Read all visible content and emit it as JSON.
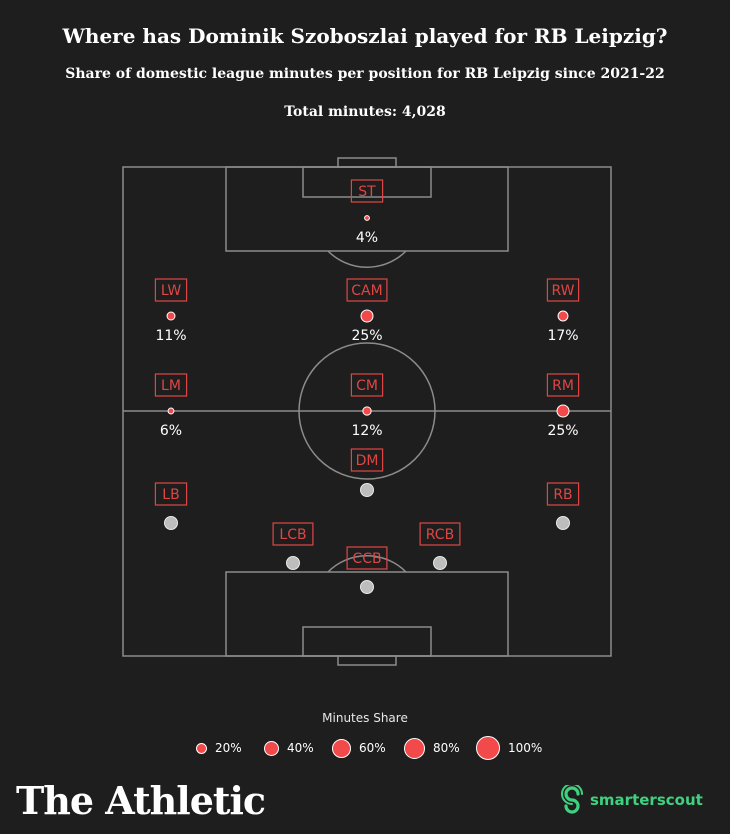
{
  "header": {
    "title": "Where has Dominik Szoboszlai played for RB Leipzig?",
    "subtitle": "Share of domestic league minutes per position for RB Leipzig since 2021-22",
    "total": "Total minutes: 4,028"
  },
  "colors": {
    "background": "#1e1e1e",
    "pitch_lines": "#8c8c8c",
    "active_dot": "#f24a4a",
    "inactive_dot": "#bdbdbd",
    "label_border": "#e04545",
    "label_text": "#e04545",
    "brand_green": "#3ed17f"
  },
  "chart_data": {
    "type": "scatter",
    "title": "Where has Dominik Szoboszlai played for RB Leipzig?",
    "subtitle": "Share of domestic league minutes per position for RB Leipzig since 2021-22",
    "total_minutes": 4028,
    "positions": [
      {
        "name": "ST",
        "share": 4,
        "label": "4%"
      },
      {
        "name": "LW",
        "share": 11,
        "label": "11%"
      },
      {
        "name": "CAM",
        "share": 25,
        "label": "25%"
      },
      {
        "name": "RW",
        "share": 17,
        "label": "17%"
      },
      {
        "name": "LM",
        "share": 6,
        "label": "6%"
      },
      {
        "name": "CM",
        "share": 12,
        "label": "12%"
      },
      {
        "name": "RM",
        "share": 25,
        "label": "25%"
      },
      {
        "name": "DM",
        "share": 0,
        "label": ""
      },
      {
        "name": "LB",
        "share": 0,
        "label": ""
      },
      {
        "name": "RB",
        "share": 0,
        "label": ""
      },
      {
        "name": "LCB",
        "share": 0,
        "label": ""
      },
      {
        "name": "RCB",
        "share": 0,
        "label": ""
      },
      {
        "name": "CCB",
        "share": 0,
        "label": ""
      }
    ],
    "legend": {
      "title": "Minutes Share",
      "items": [
        {
          "value": 20,
          "label": "20%"
        },
        {
          "value": 40,
          "label": "40%"
        },
        {
          "value": 60,
          "label": "60%"
        },
        {
          "value": 80,
          "label": "80%"
        },
        {
          "value": 100,
          "label": "100%"
        }
      ],
      "placement": "bottom-center"
    }
  },
  "footer": {
    "brand": "The Athletic",
    "partner": "smarterscout"
  }
}
